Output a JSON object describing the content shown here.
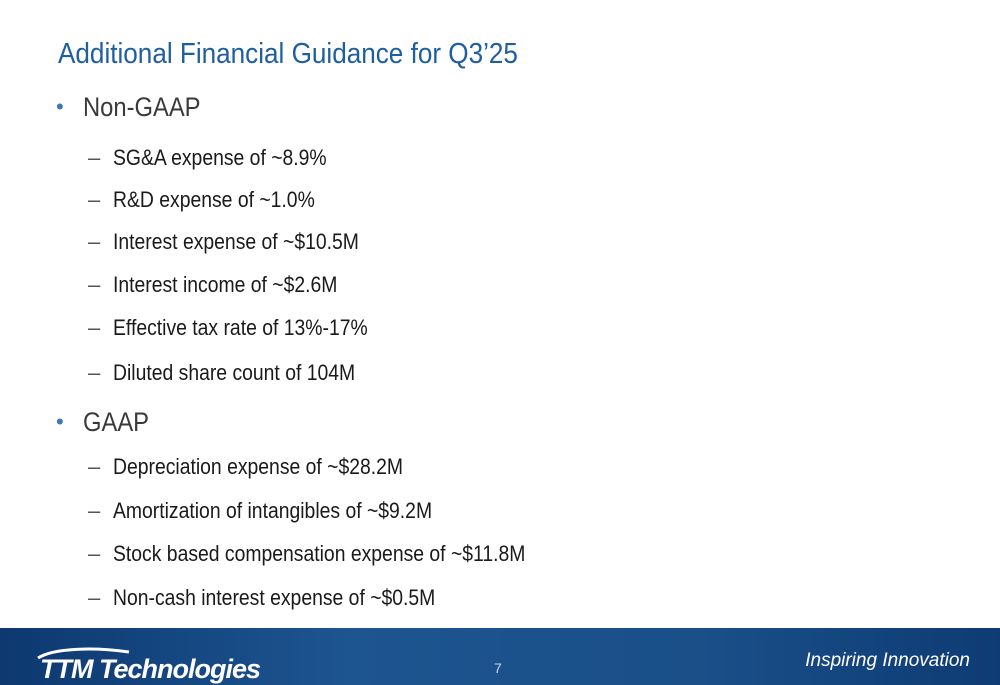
{
  "title": "Additional Financial Guidance for Q3’25",
  "sections": [
    {
      "label": "Non-GAAP",
      "items": [
        "SG&A expense of ~8.9%",
        "R&D expense of ~1.0%",
        "Interest expense of ~$10.5M",
        "Interest income of ~$2.6M",
        "Effective tax rate of 13%-17%",
        "Diluted share count of 104M"
      ]
    },
    {
      "label": "GAAP",
      "items": [
        "Depreciation expense of ~$28.2M",
        "Amortization of intangibles of ~$9.2M",
        "Stock based compensation expense of ~$11.8M",
        "Non-cash interest expense of ~$0.5M"
      ]
    }
  ],
  "footer": {
    "logo_text": "TTM Technologies",
    "page_number": "7",
    "tagline": "Inspiring Innovation"
  }
}
